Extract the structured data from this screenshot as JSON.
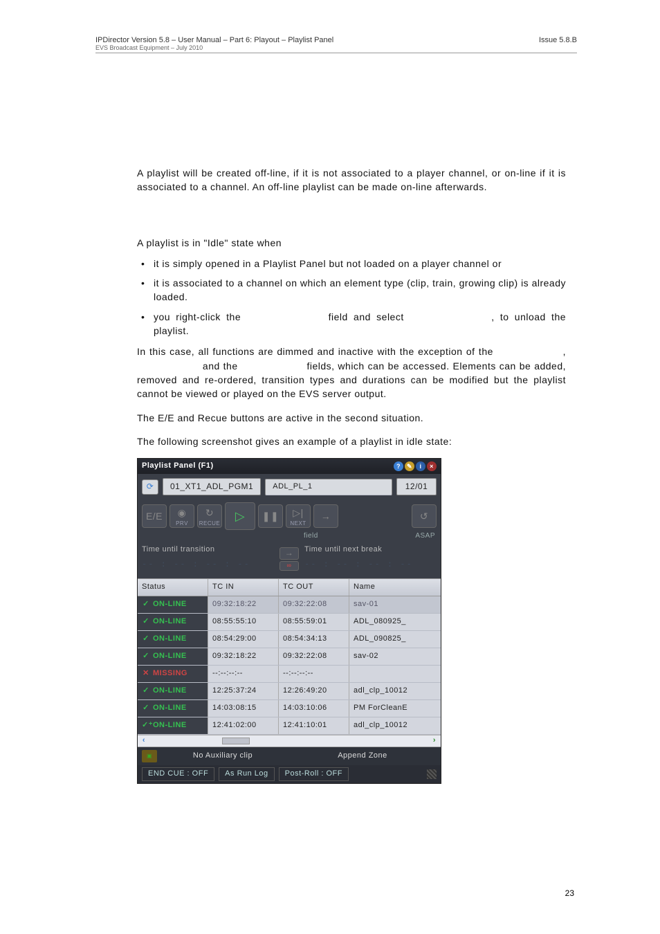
{
  "header": {
    "left_line1": "IPDirector Version 5.8 – User Manual – Part 6: Playout – Playlist Panel",
    "left_line2": "EVS Broadcast Equipment – July 2010",
    "issue": "Issue 5.8.B"
  },
  "text": {
    "para1": "A playlist will be created off-line, if it is not associated to a player channel, or on-line if it is associated to a channel. An off-line playlist can be made on-line afterwards.",
    "idle_title": "A playlist is in \"Idle\" state when",
    "b1": "it is simply opened in a Playlist Panel but not loaded on a player channel or",
    "b2": "it is associated to a channel on which an element type (clip, train, growing clip) is already loaded.",
    "b3a": "you right-click the",
    "b3b": "field and select",
    "b3c": ", to unload the playlist.",
    "para2a": "In this case, all functions are dimmed and inactive with the exception of the",
    "para2b": ",",
    "para2c": "and the",
    "para2d": "fields, which can be accessed. Elements can be added, removed and re-ordered, transition types and durations can be modified but the playlist cannot be viewed or played on the EVS server output.",
    "para3": "The E/E and Recue buttons are active in the second situation.",
    "para4": "The following screenshot gives an example of a playlist in idle state:"
  },
  "panel": {
    "title": "Playlist Panel (F1)",
    "channel_btn": "01_XT1_ADL_PGM1",
    "channel_name": "ADL_PL_1",
    "counter": "12/01",
    "transport": {
      "ee": "E/E",
      "prv": "PRV",
      "recue": "RECUE",
      "next": "NEXT",
      "field": "field",
      "asap": "ASAP"
    },
    "time": {
      "l_label": "Time until transition",
      "r_label": "Time until next break",
      "dashes": "-- : -- : -- : --"
    },
    "columns": {
      "status": "Status",
      "tcin": "TC IN",
      "tcout": "TC OUT",
      "name": "Name"
    },
    "rows": [
      {
        "icon": "ok",
        "status": "ON-LINE",
        "tcin": "09:32:18:22",
        "tcout": "09:32:22:08",
        "name": "sav-01",
        "sel": true
      },
      {
        "icon": "ok",
        "status": "ON-LINE",
        "tcin": "08:55:55:10",
        "tcout": "08:55:59:01",
        "name": "ADL_080925_"
      },
      {
        "icon": "ok",
        "status": "ON-LINE",
        "tcin": "08:54:29:00",
        "tcout": "08:54:34:13",
        "name": "ADL_090825_"
      },
      {
        "icon": "ok",
        "status": "ON-LINE",
        "tcin": "09:32:18:22",
        "tcout": "09:32:22:08",
        "name": "sav-02"
      },
      {
        "icon": "x",
        "status": "MISSING",
        "tcin": "--:--:--:--",
        "tcout": "--:--:--:--",
        "name": ""
      },
      {
        "icon": "ok",
        "status": "ON-LINE",
        "tcin": "12:25:37:24",
        "tcout": "12:26:49:20",
        "name": "adl_clp_10012"
      },
      {
        "icon": "ok",
        "status": "ON-LINE",
        "tcin": "14:03:08:15",
        "tcout": "14:03:10:06",
        "name": "PM ForCleanE"
      },
      {
        "icon": "ok2",
        "status": "ON-LINE",
        "tcin": "12:41:02:00",
        "tcout": "12:41:10:01",
        "name": "adl_clp_10012"
      }
    ],
    "aux": {
      "noaux": "No Auxiliary clip",
      "zone": "Append Zone"
    },
    "status": {
      "endcue": "END CUE : OFF",
      "asrun": "As Run Log",
      "postroll": "Post-Roll : OFF"
    }
  },
  "pagenum": "23",
  "styles": {
    "panel_bg": "#3a3e47",
    "header_grad_top": "#dcdfe6",
    "header_grad_bot": "#c6cad4",
    "row_bg": "#d3d6de",
    "row_sel_bg": "#c2c6d0",
    "status_ok": "#35c050",
    "status_x": "#d04444"
  }
}
